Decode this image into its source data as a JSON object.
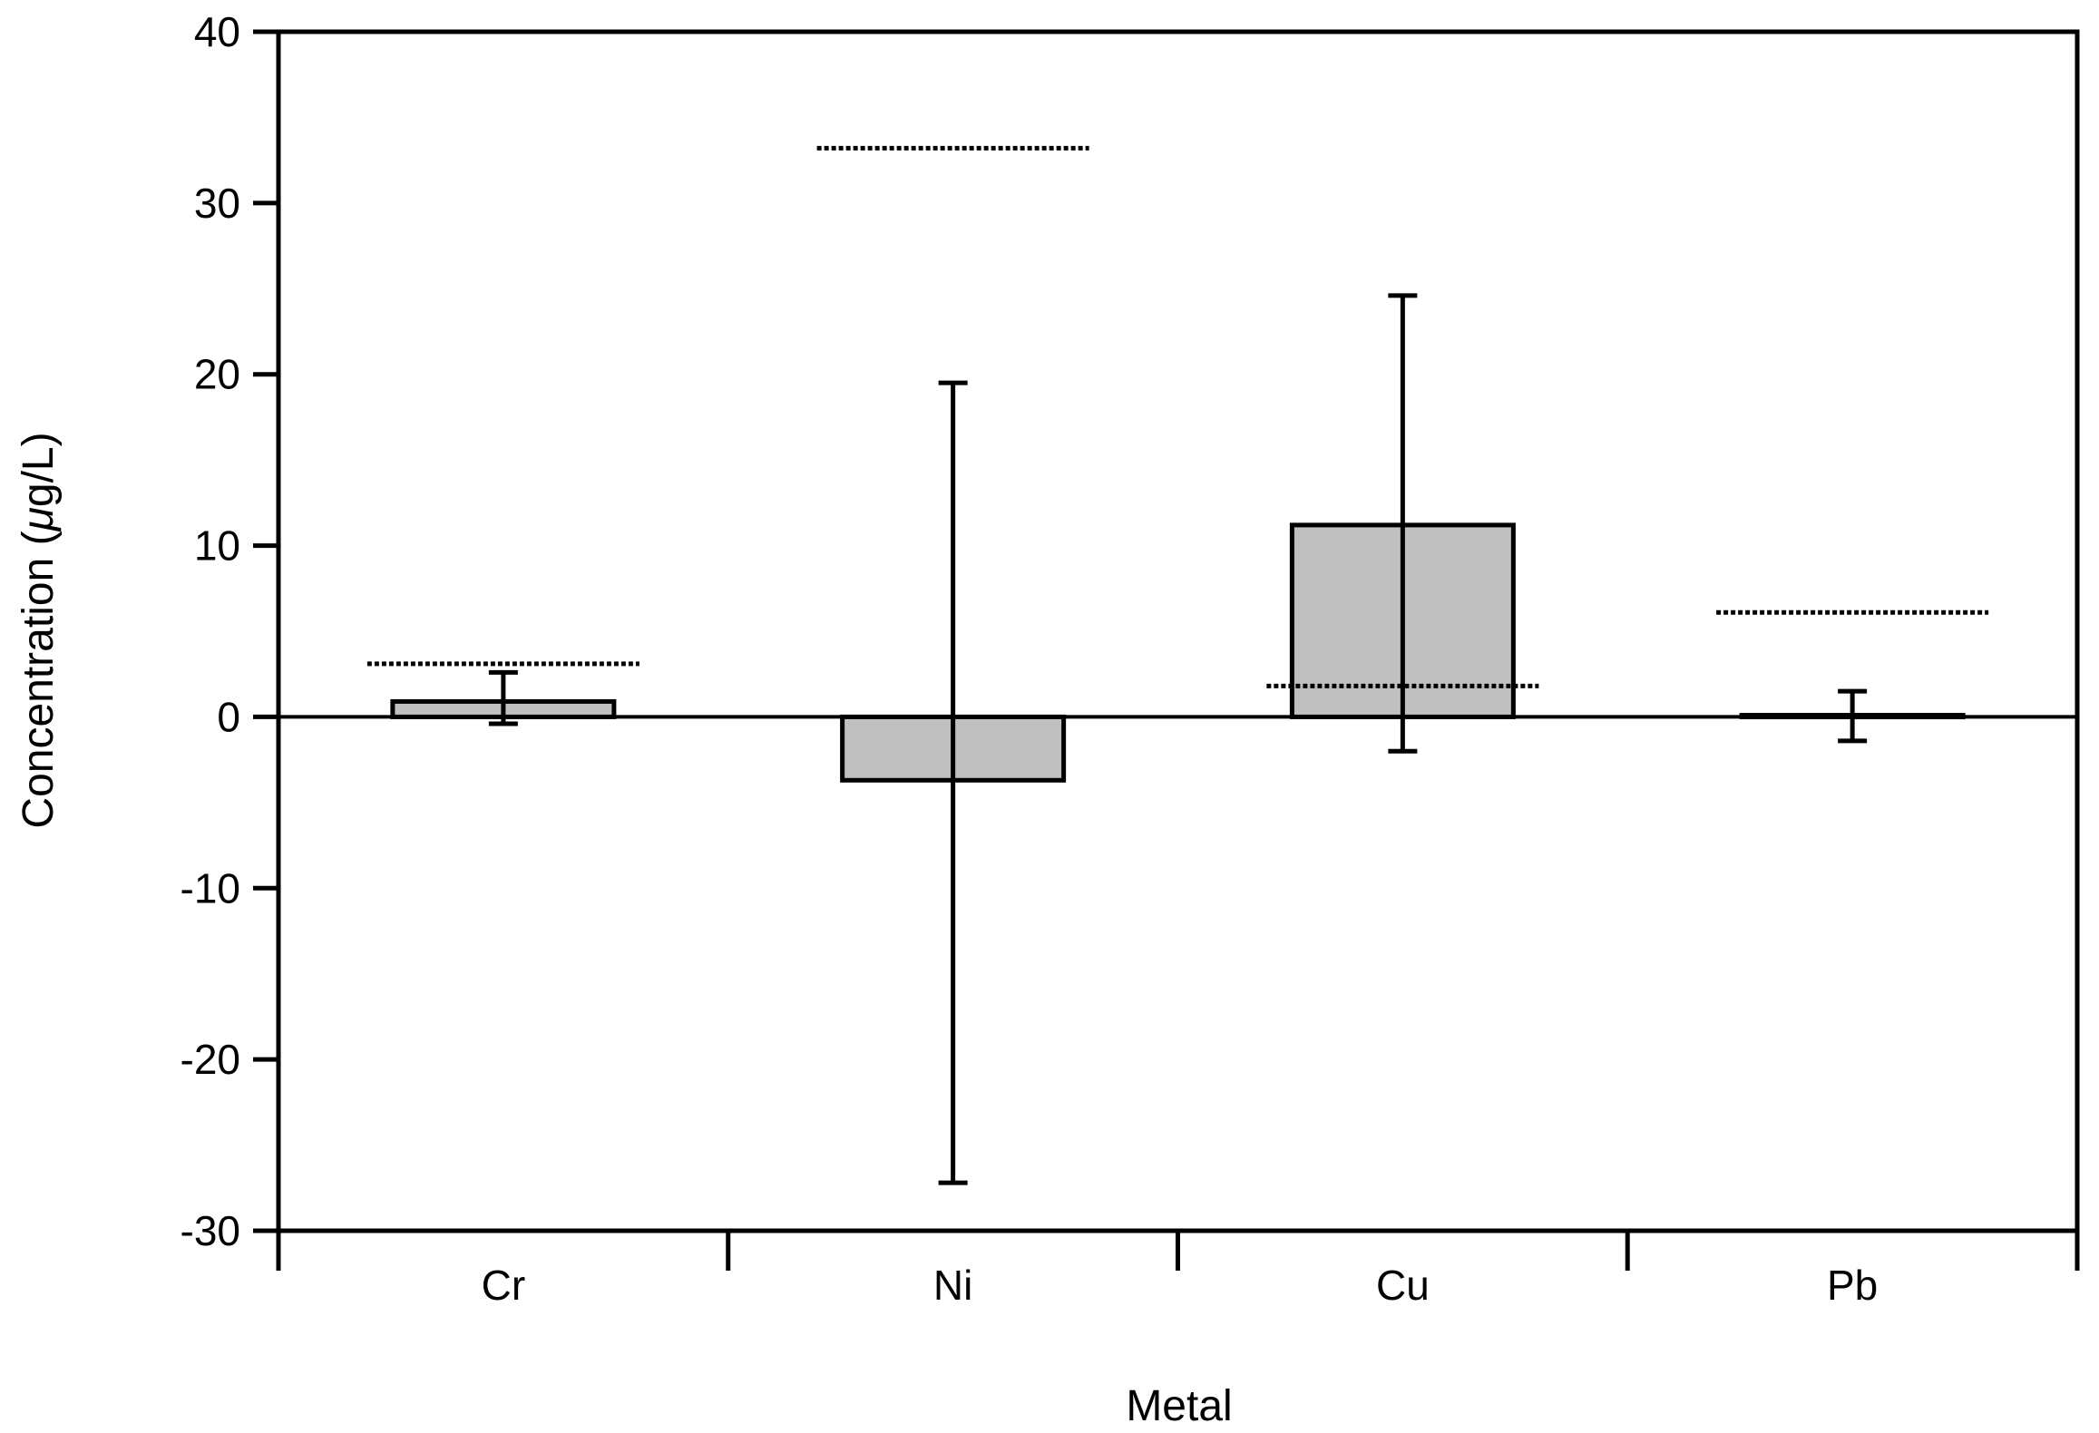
{
  "chart_data": {
    "type": "bar",
    "title": "",
    "xlabel": "Metal",
    "ylabel_prefix": "Concentration (",
    "ylabel_symbol": "μ",
    "ylabel_suffix": "g/L)",
    "categories": [
      "Cr",
      "Ni",
      "Cu",
      "Pb"
    ],
    "values": [
      0.9,
      -3.7,
      11.2,
      0.1
    ],
    "error_bars": [
      {
        "low": -0.4,
        "high": 2.6
      },
      {
        "low": -27.2,
        "high": 19.5
      },
      {
        "low": -2.0,
        "high": 24.6
      },
      {
        "low": -1.4,
        "high": 1.5
      }
    ],
    "reference_lines": [
      3.1,
      33.2,
      1.8,
      6.1
    ],
    "ylim": [
      -30,
      40
    ],
    "yticks": [
      -30,
      -20,
      -10,
      0,
      10,
      20,
      30,
      40
    ],
    "ytick_labels": [
      "-30",
      "-20",
      "-10",
      "0",
      "10",
      "20",
      "30",
      "40"
    ],
    "grid": false,
    "colors": {
      "bar_fill": "#c0c0c0",
      "bar_stroke": "#000000",
      "axis": "#000000",
      "reference_line": "#000000"
    }
  }
}
